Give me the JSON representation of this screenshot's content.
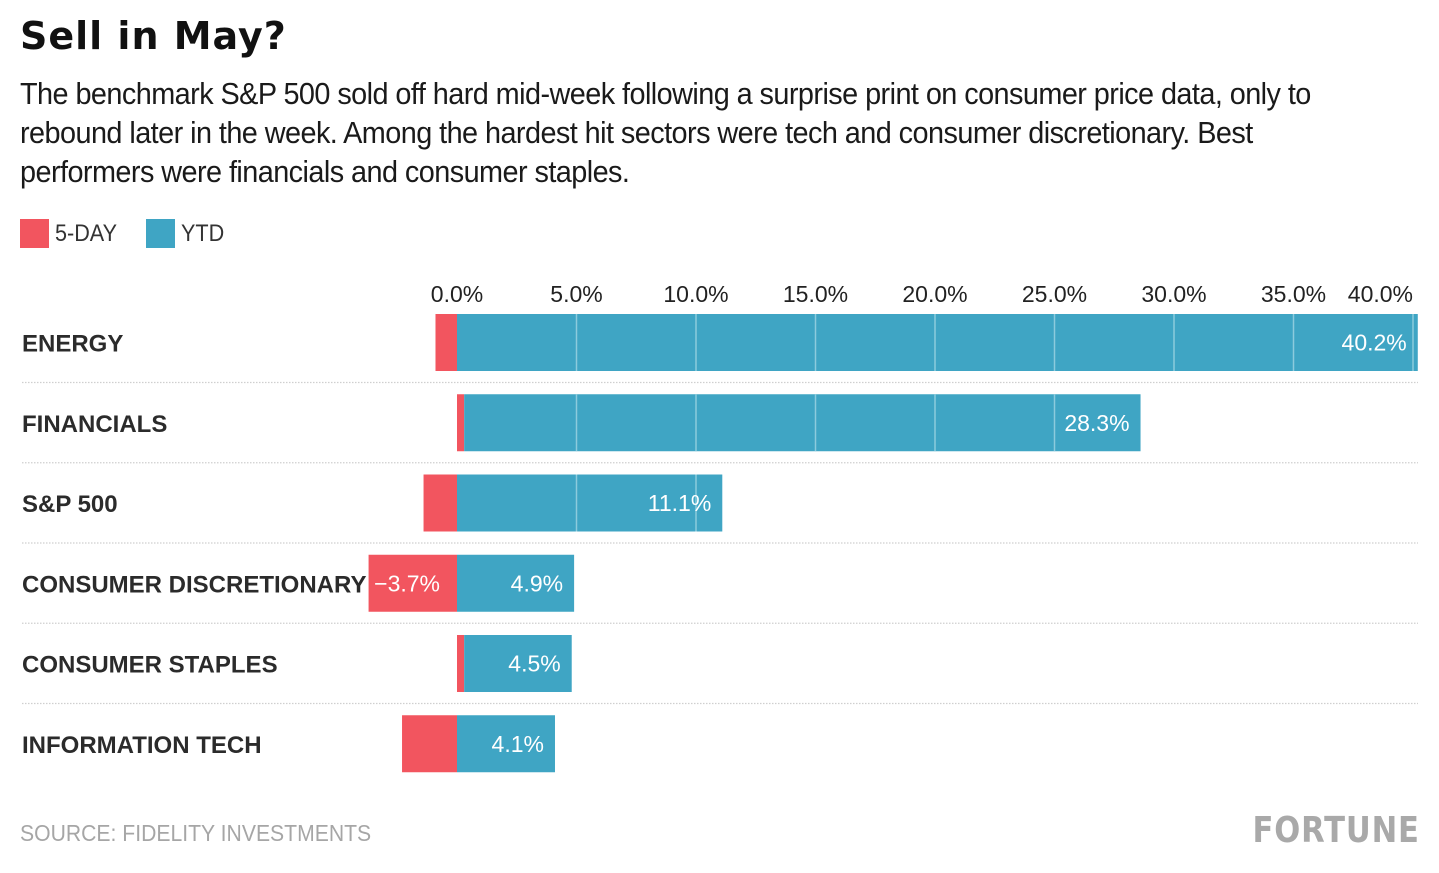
{
  "chart_data": {
    "type": "bar",
    "orientation": "horizontal",
    "stacked": true,
    "title": "Sell in May?",
    "subtitle": "The benchmark S&P 500 sold off hard mid-week following a surprise print on consumer price data, only to rebound later in the week. Among the hardest hit sectors were tech and consumer discretionary. Best performers were financials and consumer staples.",
    "categories": [
      "ENERGY",
      "FINANCIALS",
      "S&P 500",
      "CONSUMER DISCRETIONARY",
      "CONSUMER STAPLES",
      "INFORMATION TECH"
    ],
    "series": [
      {
        "name": "5-DAY",
        "color": "#f2555f",
        "values": [
          -0.9,
          0.3,
          -1.4,
          -3.7,
          0.3,
          -2.3
        ],
        "labels": [
          null,
          null,
          null,
          "−3.7%",
          null,
          null
        ]
      },
      {
        "name": "YTD",
        "color": "#3fa5c4",
        "values": [
          40.2,
          28.3,
          11.1,
          4.9,
          4.5,
          4.1
        ],
        "labels": [
          "40.2%",
          "28.3%",
          "11.1%",
          "4.9%",
          "4.5%",
          "4.1%"
        ]
      }
    ],
    "xaxis": {
      "ticks": [
        0,
        5,
        10,
        15,
        20,
        25,
        30,
        35,
        40
      ],
      "tick_labels": [
        "0.0%",
        "5.0%",
        "10.0%",
        "15.0%",
        "20.0%",
        "25.0%",
        "30.0%",
        "35.0%",
        "40.0%"
      ],
      "range": [
        -3.7,
        40.2
      ],
      "position": "top"
    },
    "xlabel": "",
    "ylabel": "",
    "grid": true,
    "legend": "top-left",
    "source": "SOURCE: FIDELITY INVESTMENTS"
  },
  "header": {
    "title": "Sell in May?",
    "subtitle": "The benchmark S&P 500 sold off hard mid-week following a surprise print on consumer price data, only to rebound later in the week. Among the hardest hit sectors were tech and consumer discretionary. Best performers were financials and consumer staples."
  },
  "legend": [
    {
      "label": "5-DAY",
      "color": "#f2555f"
    },
    {
      "label": "YTD",
      "color": "#3fa5c4"
    }
  ],
  "footer": {
    "source": "SOURCE: FIDELITY INVESTMENTS",
    "brand": "FORTUNE"
  }
}
